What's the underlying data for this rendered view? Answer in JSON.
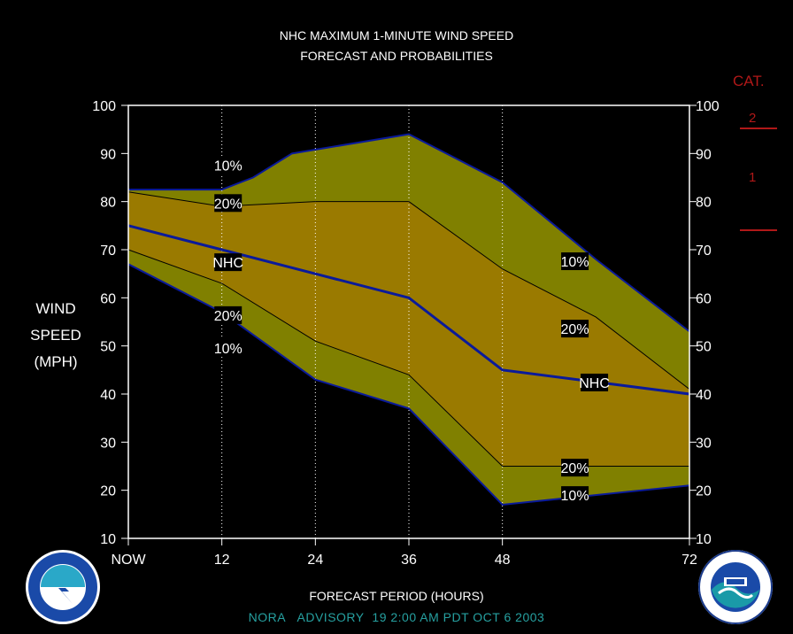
{
  "header": {
    "title_line1": "NHC MAXIMUM 1-MINUTE WIND SPEED",
    "title_line2": "FORECAST AND PROBABILITIES"
  },
  "y_axis": {
    "label_line1": "WIND",
    "label_line2": "SPEED",
    "label_line3": "(MPH)"
  },
  "x_axis": {
    "title": "FORECAST PERIOD (HOURS)"
  },
  "category_scale": {
    "title": "CAT.",
    "categories": [
      "2",
      "1"
    ],
    "color": "#b01818"
  },
  "footer": {
    "storm": "NORA",
    "advisory": "ADVISORY",
    "number": "19",
    "time": "2:00",
    "ampm": "AM",
    "zone": "PDT",
    "month": "OCT",
    "day": "6",
    "year": "2003",
    "color": "#26a0a0"
  },
  "logos": {
    "left": "nws-logo",
    "right": "noaa-logo"
  },
  "chart_data": {
    "type": "area",
    "x": [
      0,
      12,
      24,
      36,
      48,
      72
    ],
    "x_tick_labels": [
      "NOW",
      "12",
      "24",
      "36",
      "48",
      "72"
    ],
    "y_ticks": [
      10,
      20,
      30,
      40,
      50,
      60,
      70,
      80,
      90,
      100
    ],
    "ylim": [
      10,
      100
    ],
    "xlim": [
      0,
      72
    ],
    "colors": {
      "outer_band": "#808000",
      "inner_band": "#9a7a00",
      "nhc_line": "#0a1a9a"
    },
    "series": [
      {
        "label": "10%",
        "role": "upper-10",
        "x": [
          0,
          12,
          16,
          21,
          36,
          48,
          60,
          72
        ],
        "values": [
          82.5,
          82.5,
          85,
          90,
          94,
          84,
          68,
          53
        ]
      },
      {
        "label": "20%",
        "role": "upper-20",
        "x": [
          0,
          12,
          24,
          36,
          48,
          60,
          72
        ],
        "values": [
          82,
          79,
          80,
          80,
          66,
          56,
          41
        ]
      },
      {
        "label": "NHC",
        "role": "forecast",
        "x": [
          0,
          12,
          24,
          36,
          48,
          72
        ],
        "values": [
          75,
          70,
          65,
          60,
          45,
          40
        ]
      },
      {
        "label": "20%",
        "role": "lower-20",
        "x": [
          0,
          12,
          24,
          36,
          48,
          72
        ],
        "values": [
          70,
          63,
          51,
          44,
          25,
          25
        ]
      },
      {
        "label": "10%",
        "role": "lower-10",
        "x": [
          0,
          12,
          24,
          36,
          48,
          72
        ],
        "values": [
          67,
          57,
          43,
          37,
          17,
          21
        ]
      }
    ]
  }
}
